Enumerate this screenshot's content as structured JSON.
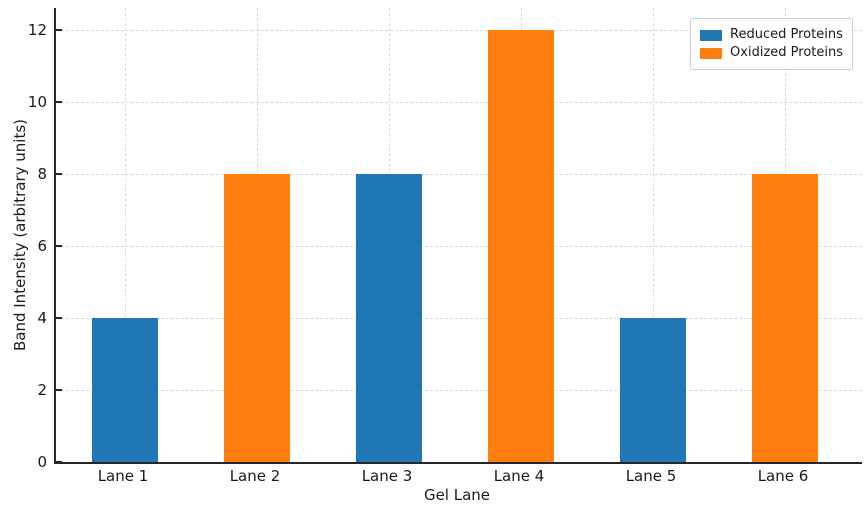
{
  "chart_data": {
    "type": "bar",
    "title": "",
    "xlabel": "Gel Lane",
    "ylabel": "Band Intensity (arbitrary units)",
    "categories": [
      "Lane 1",
      "Lane 2",
      "Lane 3",
      "Lane 4",
      "Lane 5",
      "Lane 6"
    ],
    "series": [
      {
        "name": "Reduced Proteins",
        "color": "#1f77b4",
        "values": [
          4,
          null,
          8,
          null,
          4,
          null
        ]
      },
      {
        "name": "Oxidized Proteins",
        "color": "#ff7f0e",
        "values": [
          null,
          8,
          null,
          12,
          null,
          8
        ]
      }
    ],
    "yticks": [
      0,
      2,
      4,
      6,
      8,
      10,
      12
    ],
    "ylim": [
      0,
      12.6
    ],
    "grid": true,
    "grid_axis": "both",
    "grid_style": "dashed",
    "bar_width_ratio": 0.5,
    "legend_position": "upper right"
  },
  "style": {
    "background": "#ffffff",
    "grid_color": "#d9d9d9",
    "spine_color": "#262626",
    "text_color": "#1a1a1a",
    "legend_border_color": "#cccccc"
  }
}
